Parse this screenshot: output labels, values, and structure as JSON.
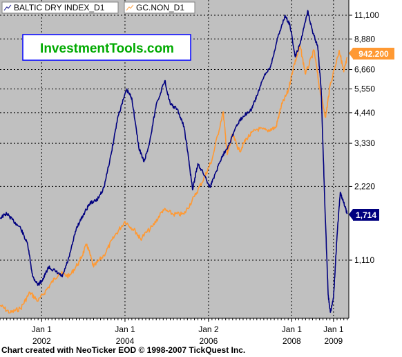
{
  "chart_data": {
    "type": "line",
    "watermark": "InvestmentTools.com",
    "footer": "Chart created with NeoTicker EOD © 1998-2007 TickQuest Inc.",
    "y_scale": "log",
    "right_axis_ticks": [
      "11,100",
      "8,880",
      "6,660",
      "5,550",
      "4,440",
      "3,330",
      "2,220",
      "1,110"
    ],
    "x_ticks": [
      {
        "month": "Jan 1",
        "year": "2002",
        "date": "2002-01-01"
      },
      {
        "month": "Jan 1",
        "year": "2004",
        "date": "2004-01-01"
      },
      {
        "month": "Jan 2",
        "year": "2006",
        "date": "2006-01-02"
      },
      {
        "month": "Jan 1",
        "year": "2008",
        "date": "2008-01-01"
      },
      {
        "month": "Jan 1",
        "year": "2009",
        "date": "2009-01-01"
      }
    ],
    "x_range": [
      "2001-01-01",
      "2009-05-15"
    ],
    "series": [
      {
        "name": "BALTIC DRY INDEX_D1",
        "color": "#00007f",
        "last_value_label": "1,714",
        "points": [
          [
            "2001-01-01",
            1650
          ],
          [
            "2001-03-01",
            1720
          ],
          [
            "2001-05-01",
            1600
          ],
          [
            "2001-07-01",
            1500
          ],
          [
            "2001-09-01",
            1280
          ],
          [
            "2001-10-15",
            950
          ],
          [
            "2001-12-01",
            880
          ],
          [
            "2002-01-15",
            930
          ],
          [
            "2002-03-01",
            1040
          ],
          [
            "2002-05-01",
            1000
          ],
          [
            "2002-07-01",
            950
          ],
          [
            "2002-09-01",
            1150
          ],
          [
            "2002-11-01",
            1500
          ],
          [
            "2003-01-01",
            1700
          ],
          [
            "2003-03-01",
            1900
          ],
          [
            "2003-05-01",
            1950
          ],
          [
            "2003-07-01",
            2200
          ],
          [
            "2003-09-01",
            3000
          ],
          [
            "2003-11-01",
            4300
          ],
          [
            "2004-01-15",
            5500
          ],
          [
            "2004-03-01",
            5100
          ],
          [
            "2004-05-01",
            3200
          ],
          [
            "2004-06-15",
            2800
          ],
          [
            "2004-08-01",
            3300
          ],
          [
            "2004-10-01",
            4800
          ],
          [
            "2004-12-15",
            6000
          ],
          [
            "2005-02-01",
            4800
          ],
          [
            "2005-04-01",
            4600
          ],
          [
            "2005-06-01",
            3900
          ],
          [
            "2005-07-15",
            2800
          ],
          [
            "2005-08-15",
            2150
          ],
          [
            "2005-10-01",
            2750
          ],
          [
            "2005-12-01",
            2450
          ],
          [
            "2006-01-15",
            2200
          ],
          [
            "2006-03-01",
            2500
          ],
          [
            "2006-05-01",
            2950
          ],
          [
            "2006-07-01",
            3300
          ],
          [
            "2006-09-01",
            3900
          ],
          [
            "2006-11-01",
            4300
          ],
          [
            "2007-01-15",
            4600
          ],
          [
            "2007-03-01",
            5200
          ],
          [
            "2007-05-01",
            6200
          ],
          [
            "2007-07-01",
            6900
          ],
          [
            "2007-09-01",
            9000
          ],
          [
            "2007-11-01",
            11000
          ],
          [
            "2007-12-15",
            10200
          ],
          [
            "2008-02-01",
            7500
          ],
          [
            "2008-03-15",
            8500
          ],
          [
            "2008-05-20",
            11600
          ],
          [
            "2008-07-01",
            9500
          ],
          [
            "2008-08-15",
            8300
          ],
          [
            "2008-09-15",
            5500
          ],
          [
            "2008-10-15",
            2000
          ],
          [
            "2008-11-15",
            800
          ],
          [
            "2008-12-05",
            680
          ],
          [
            "2009-01-01",
            780
          ],
          [
            "2009-02-01",
            1400
          ],
          [
            "2009-03-01",
            2100
          ],
          [
            "2009-04-01",
            1900
          ],
          [
            "2009-05-01",
            1714
          ]
        ]
      },
      {
        "name": "GC.NON_D1",
        "color": "#ff9933",
        "last_value_label": "942.200",
        "points": [
          [
            "2001-01-01",
            272
          ],
          [
            "2001-04-01",
            262
          ],
          [
            "2001-07-01",
            268
          ],
          [
            "2001-09-20",
            290
          ],
          [
            "2001-12-01",
            278
          ],
          [
            "2002-03-01",
            298
          ],
          [
            "2002-06-01",
            320
          ],
          [
            "2002-09-01",
            315
          ],
          [
            "2002-12-01",
            340
          ],
          [
            "2003-02-01",
            370
          ],
          [
            "2003-04-01",
            330
          ],
          [
            "2003-07-01",
            350
          ],
          [
            "2003-10-01",
            385
          ],
          [
            "2004-01-01",
            415
          ],
          [
            "2004-04-01",
            395
          ],
          [
            "2004-05-15",
            380
          ],
          [
            "2004-09-01",
            405
          ],
          [
            "2004-12-01",
            440
          ],
          [
            "2005-03-01",
            430
          ],
          [
            "2005-06-01",
            430
          ],
          [
            "2005-09-01",
            470
          ],
          [
            "2005-12-01",
            520
          ],
          [
            "2006-02-01",
            565
          ],
          [
            "2006-05-10",
            720
          ],
          [
            "2006-06-15",
            580
          ],
          [
            "2006-08-01",
            640
          ],
          [
            "2006-10-01",
            590
          ],
          [
            "2006-12-01",
            630
          ],
          [
            "2007-03-01",
            660
          ],
          [
            "2007-06-01",
            655
          ],
          [
            "2007-08-15",
            665
          ],
          [
            "2007-10-01",
            740
          ],
          [
            "2007-12-01",
            800
          ],
          [
            "2008-01-15",
            900
          ],
          [
            "2008-03-15",
            1000
          ],
          [
            "2008-05-01",
            870
          ],
          [
            "2008-07-15",
            980
          ],
          [
            "2008-09-01",
            810
          ],
          [
            "2008-10-24",
            700
          ],
          [
            "2008-12-01",
            820
          ],
          [
            "2009-02-20",
            980
          ],
          [
            "2009-04-01",
            880
          ],
          [
            "2009-05-01",
            942.2
          ]
        ]
      }
    ]
  }
}
